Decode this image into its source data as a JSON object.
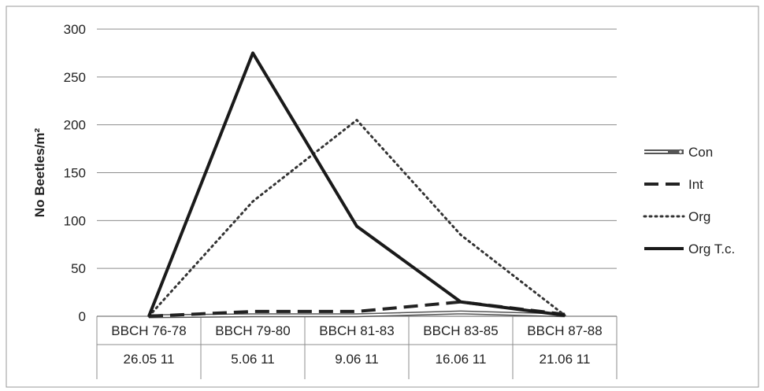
{
  "chart_data": {
    "type": "line",
    "title": "",
    "ylabel": "No Beetles/m²",
    "ylim": [
      0,
      300
    ],
    "yticks": [
      0,
      50,
      100,
      150,
      200,
      250,
      300
    ],
    "grid": true,
    "legend_position": "right",
    "categories": [
      "BBCH 76-78",
      "BBCH 79-80",
      "BBCH 81-83",
      "BBCH 83-85",
      "BBCH 87-88"
    ],
    "dates": [
      "26.05 11",
      "5.06 11",
      "9.06 11",
      "16.06 11",
      "21.06 11"
    ],
    "series": [
      {
        "name": "Con",
        "style": "double",
        "color": "#555555",
        "values": [
          0,
          1,
          1,
          4,
          1
        ]
      },
      {
        "name": "Int",
        "style": "dashed",
        "color": "#222222",
        "values": [
          0,
          5,
          5,
          15,
          2
        ]
      },
      {
        "name": "Org",
        "style": "dotted",
        "color": "#333333",
        "values": [
          0,
          120,
          205,
          85,
          1
        ]
      },
      {
        "name": "Org T.c.",
        "style": "solid",
        "color": "#1a1a1a",
        "values": [
          0,
          275,
          94,
          15,
          1
        ]
      }
    ]
  }
}
